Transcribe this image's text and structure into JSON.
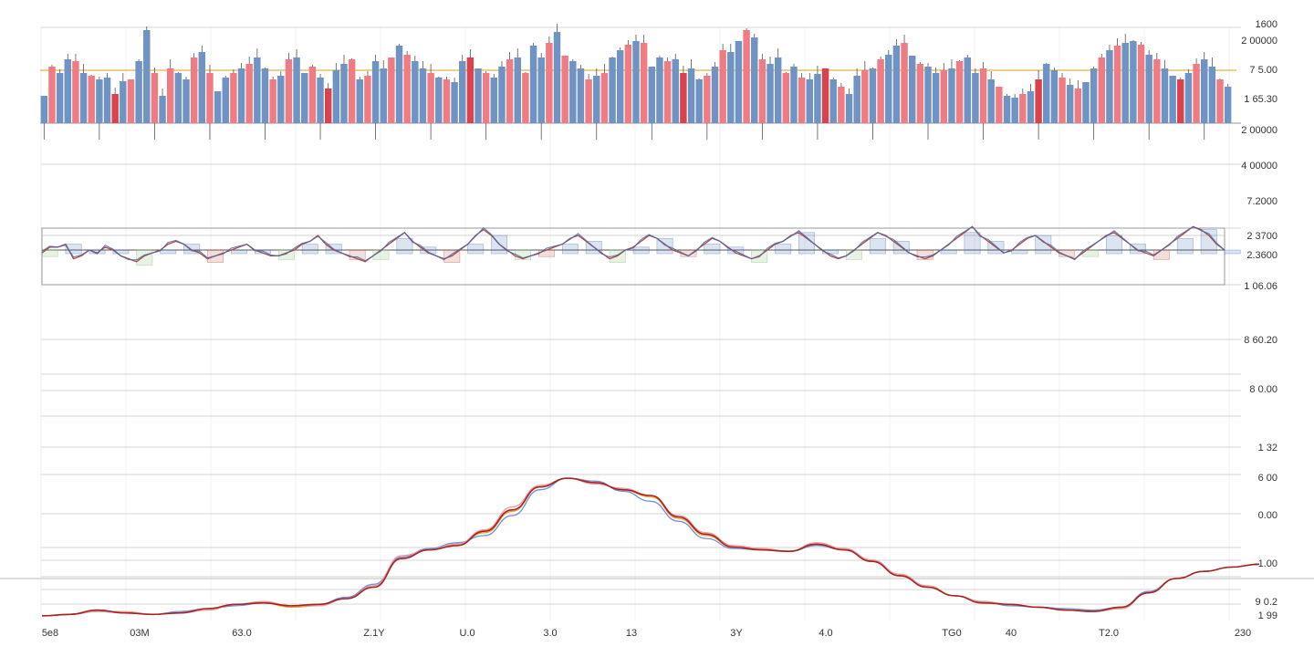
{
  "colors": {
    "up": "#6f94c4",
    "down": "#ee7c82",
    "down_dark": "#d9434b",
    "reference_line": "#e8b04a",
    "grid": "#d4d4d4",
    "frame": "#9a9a9a",
    "line_orange": "#e8a23a",
    "line_blue": "#6f8fd8",
    "line_red": "#a8231e",
    "line_pink": "#e79aa0",
    "osc_blue": "#3e68b0",
    "osc_red": "#b5473a",
    "osc_green": "#7cb56a"
  },
  "chart_data": [
    {
      "type": "bar",
      "panel": "top",
      "series": [
        {
          "name": "",
          "values": [
            30,
            62,
            55,
            70,
            68,
            55,
            52,
            48,
            50,
            32,
            46,
            48,
            68,
            102,
            55,
            30,
            60,
            55,
            48,
            72,
            78,
            55,
            35,
            50,
            55,
            60,
            65,
            72,
            60,
            48,
            52,
            70,
            72,
            55,
            62,
            50,
            38,
            58,
            65,
            70,
            48,
            52,
            68,
            60,
            72,
            85,
            75,
            68,
            60,
            55,
            50,
            48,
            45,
            68,
            72,
            60,
            55,
            50,
            62,
            70,
            72,
            55,
            85,
            72,
            88,
            100,
            74,
            68,
            60,
            48,
            52,
            55,
            72,
            80,
            86,
            90,
            88,
            62,
            72,
            68,
            70,
            55,
            60,
            48,
            52,
            62,
            80,
            78,
            90,
            102,
            94,
            70,
            65,
            72,
            55,
            62,
            50,
            48,
            54,
            60,
            48,
            40,
            32,
            52,
            58,
            60,
            70,
            75,
            85,
            88,
            74,
            65,
            62,
            55,
            58,
            60,
            68,
            72,
            55,
            60,
            48,
            40,
            30,
            28,
            32,
            35,
            48,
            65,
            58,
            50,
            42,
            38,
            45,
            60,
            72,
            80,
            85,
            88,
            90,
            86,
            75,
            70,
            60,
            52,
            48,
            55,
            65,
            70,
            62,
            48,
            40
          ]
        }
      ],
      "ylim": [
        0,
        100
      ],
      "right_tick_labels": [
        "1600",
        "2 00000",
        "7 5.00",
        "1 65.30",
        "2 00000",
        "4 00000",
        "7.2000"
      ]
    },
    {
      "type": "line",
      "panel": "middle",
      "series": [
        {
          "name": "",
          "values": [
            49,
            51,
            51,
            52,
            47,
            48,
            50,
            49,
            51,
            50,
            48,
            47,
            46,
            48,
            49,
            50,
            52,
            53,
            52,
            50,
            49,
            47,
            48,
            49,
            50,
            51,
            52,
            50,
            49,
            48,
            48,
            49,
            50,
            52,
            53,
            55,
            52,
            50,
            49,
            48,
            47,
            46,
            48,
            50,
            52,
            54,
            56,
            53,
            51,
            49,
            48,
            47,
            48,
            50,
            52,
            55,
            57,
            55,
            52,
            50,
            48,
            47,
            48,
            49,
            50,
            51,
            52,
            54,
            55,
            53,
            51,
            49,
            47,
            48,
            50,
            51,
            53,
            55,
            54,
            52,
            50,
            49,
            48,
            50,
            52,
            54,
            53,
            51,
            49,
            48,
            47,
            48,
            50,
            52,
            53,
            55,
            56,
            54,
            52,
            50,
            48,
            47,
            48,
            50,
            52,
            54,
            56,
            55,
            53,
            51,
            49,
            48,
            47,
            48,
            50,
            52,
            54,
            56,
            58,
            55,
            53,
            51,
            49,
            50,
            52,
            54,
            55,
            53,
            51,
            49,
            48,
            47,
            49,
            51,
            53,
            55,
            56,
            54,
            52,
            50,
            49,
            48,
            50,
            52,
            54,
            56,
            58,
            57,
            55,
            52,
            50
          ]
        }
      ],
      "right_tick_labels": [
        "2 3700",
        "2.3600",
        "1 06.06",
        "8 60.20"
      ]
    },
    {
      "type": "line",
      "panel": "bottom",
      "x_tick_labels": [
        "5e8",
        "03M",
        "63.0",
        "Z.1Y",
        "U.0",
        "3.0",
        "13",
        "3Y",
        "4.0",
        "TG0",
        "40",
        "T2.0",
        "230"
      ],
      "right_tick_labels": [
        "8 0.00",
        "1 32",
        "6 00",
        "0.00",
        "-1.00",
        "9 0.2",
        "1 99"
      ],
      "series": [
        {
          "name": "",
          "values": [
            2,
            3,
            6,
            4,
            3,
            4,
            7,
            10,
            11,
            8,
            9,
            14,
            22,
            42,
            48,
            52,
            60,
            75,
            92,
            98,
            95,
            90,
            85,
            70,
            58,
            50,
            49,
            47,
            52,
            48,
            40,
            30,
            22,
            16,
            12,
            10,
            8,
            6,
            5,
            7,
            18,
            28,
            33,
            36,
            38
          ]
        },
        {
          "name": "",
          "values": [
            2,
            3,
            5,
            4,
            3,
            5,
            7,
            9,
            11,
            9,
            10,
            15,
            24,
            43,
            49,
            53,
            58,
            72,
            90,
            98,
            96,
            89,
            82,
            68,
            56,
            49,
            48,
            47,
            51,
            48,
            40,
            30,
            22,
            16,
            12,
            9,
            8,
            7,
            6,
            8,
            19,
            28,
            33,
            36,
            38
          ]
        },
        {
          "name": "",
          "values": [
            2,
            3,
            5,
            5,
            3,
            4,
            6,
            10,
            12,
            9,
            9,
            14,
            23,
            44,
            48,
            52,
            62,
            78,
            93,
            98,
            94,
            91,
            86,
            72,
            60,
            51,
            49,
            47,
            53,
            49,
            41,
            31,
            23,
            16,
            12,
            10,
            8,
            6,
            5,
            7,
            18,
            28,
            33,
            36,
            38
          ]
        },
        {
          "name": "",
          "values": [
            2,
            3,
            6,
            4,
            3,
            4,
            7,
            10,
            11,
            9,
            10,
            14,
            22,
            42,
            48,
            51,
            61,
            76,
            92,
            98,
            95,
            90,
            86,
            71,
            59,
            50,
            48,
            47,
            52,
            48,
            40,
            30,
            22,
            16,
            11,
            10,
            8,
            6,
            5,
            8,
            18,
            28,
            33,
            36,
            38
          ]
        }
      ]
    }
  ]
}
